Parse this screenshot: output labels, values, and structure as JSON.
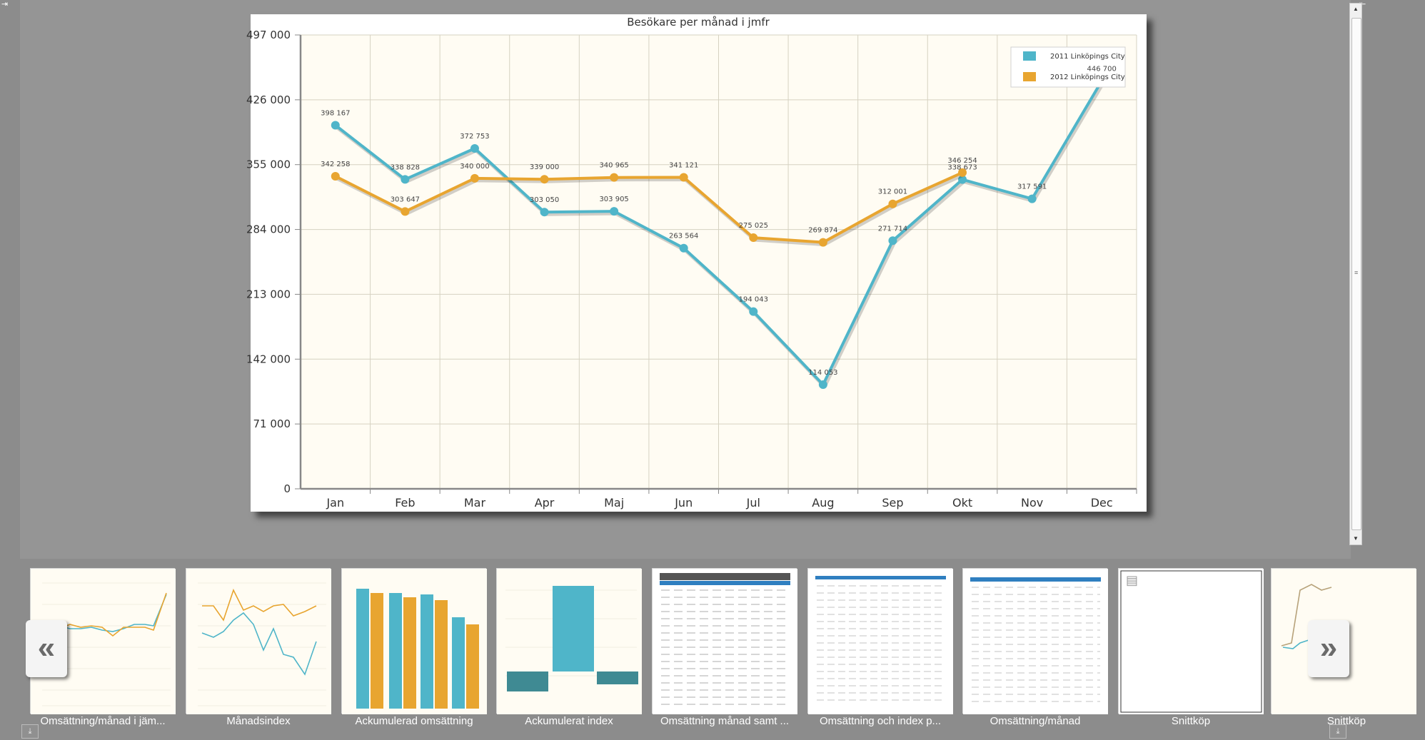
{
  "chart_data": {
    "type": "line",
    "title": "Besökare per månad i jmfr",
    "categories": [
      "Jan",
      "Feb",
      "Mar",
      "Apr",
      "Maj",
      "Jun",
      "Jul",
      "Aug",
      "Sep",
      "Okt",
      "Nov",
      "Dec"
    ],
    "y_ticks": [
      "0",
      "71 000",
      "142 000",
      "213 000",
      "284 000",
      "355 000",
      "426 000",
      "497 000"
    ],
    "ylim": [
      0,
      497000
    ],
    "grid": true,
    "legend_position": "top-right",
    "series": [
      {
        "name": "2011 Linköpings City",
        "color": "#4fb5c9",
        "values": [
          398167,
          338828,
          372753,
          303050,
          303905,
          263564,
          194043,
          114053,
          271714,
          338673,
          317591,
          446700
        ],
        "labels": [
          "398 167",
          "338 828",
          "372 753",
          "303 050",
          "303 905",
          "263 564",
          "194 043",
          "114 053",
          "271 714",
          "338 673",
          "317 591",
          "446 700"
        ]
      },
      {
        "name": "2012 Linköpings City",
        "color": "#e8a530",
        "values": [
          342258,
          303647,
          340000,
          339000,
          340965,
          341121,
          275025,
          269874,
          312001,
          346254,
          null,
          null
        ],
        "labels": [
          "342 258",
          "303 647",
          "340 000",
          "339 000",
          "340 965",
          "341 121",
          "275 025",
          "269 874",
          "312 001",
          "346 254",
          null,
          null
        ]
      }
    ]
  },
  "thumbnails": [
    {
      "label": "Omsättning/månad i jäm..."
    },
    {
      "label": "Månadsindex"
    },
    {
      "label": "Ackumulerad omsättning"
    },
    {
      "label": "Ackumulerat index"
    },
    {
      "label": "Omsättning månad samt ..."
    },
    {
      "label": "Omsättning och index p..."
    },
    {
      "label": "Omsättning/månad"
    },
    {
      "label": "Snittköp"
    },
    {
      "label": "Snittköp"
    }
  ],
  "icons": {
    "prev": "double-chevron-left-icon",
    "next": "double-chevron-right-icon",
    "download": "download-icon"
  },
  "glyphs": {
    "prev": "«",
    "next": "»",
    "download": "⤓",
    "scroll_up": "▲",
    "scroll_down": "▼",
    "grip": "≡",
    "pin_left": "⇥",
    "pin_right": "⇤",
    "doc": "▤"
  }
}
